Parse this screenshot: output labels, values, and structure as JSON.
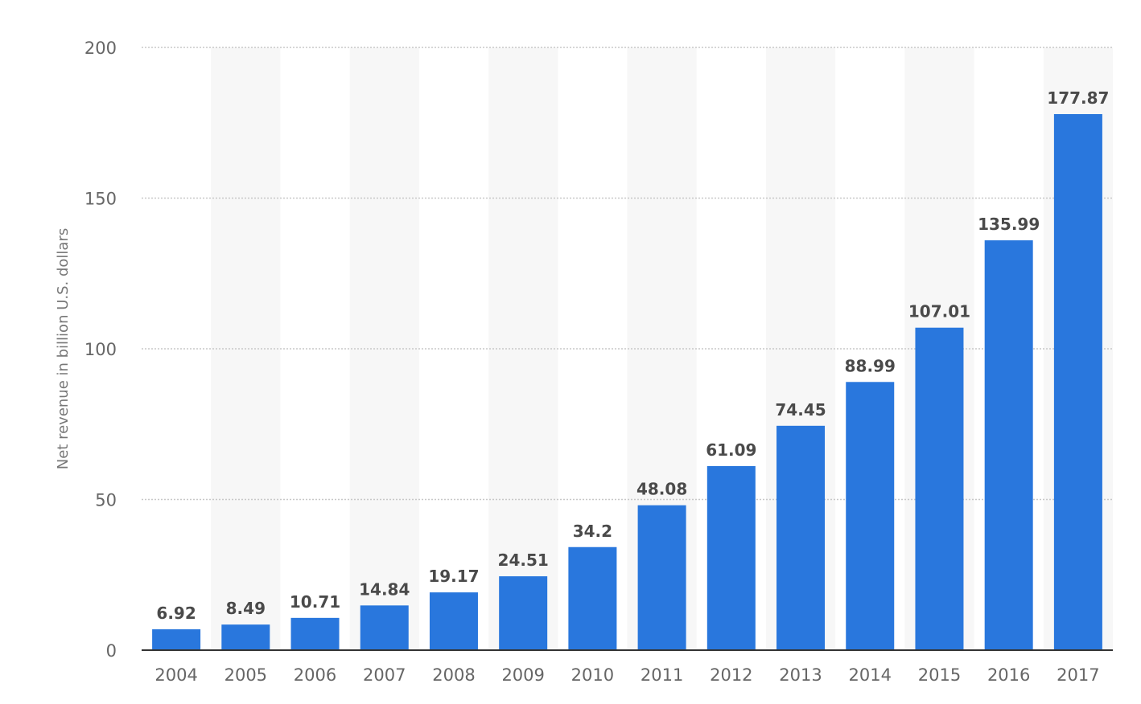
{
  "chart_data": {
    "type": "bar",
    "categories": [
      "2004",
      "2005",
      "2006",
      "2007",
      "2008",
      "2009",
      "2010",
      "2011",
      "2012",
      "2013",
      "2014",
      "2015",
      "2016",
      "2017"
    ],
    "values": [
      6.92,
      8.49,
      10.71,
      14.84,
      19.17,
      24.51,
      34.2,
      48.08,
      61.09,
      74.45,
      88.99,
      107.01,
      135.99,
      177.87
    ],
    "value_labels": [
      "6.92",
      "8.49",
      "10.71",
      "14.84",
      "19.17",
      "24.51",
      "34.2",
      "48.08",
      "61.09",
      "74.45",
      "88.99",
      "107.01",
      "135.99",
      "177.87"
    ],
    "title": "",
    "xlabel": "",
    "ylabel": "Net revenue in billion U.S. dollars",
    "ylim": [
      0,
      200
    ],
    "yticks": [
      0,
      50,
      100,
      150,
      200
    ],
    "ytick_labels": [
      "0",
      "50",
      "100",
      "150",
      "200"
    ],
    "grid": true,
    "legend": "none",
    "colors": {
      "bar": "#2977dd",
      "band": "#f7f7f7",
      "grid": "#c8c8c8",
      "axis": "#333333"
    }
  }
}
